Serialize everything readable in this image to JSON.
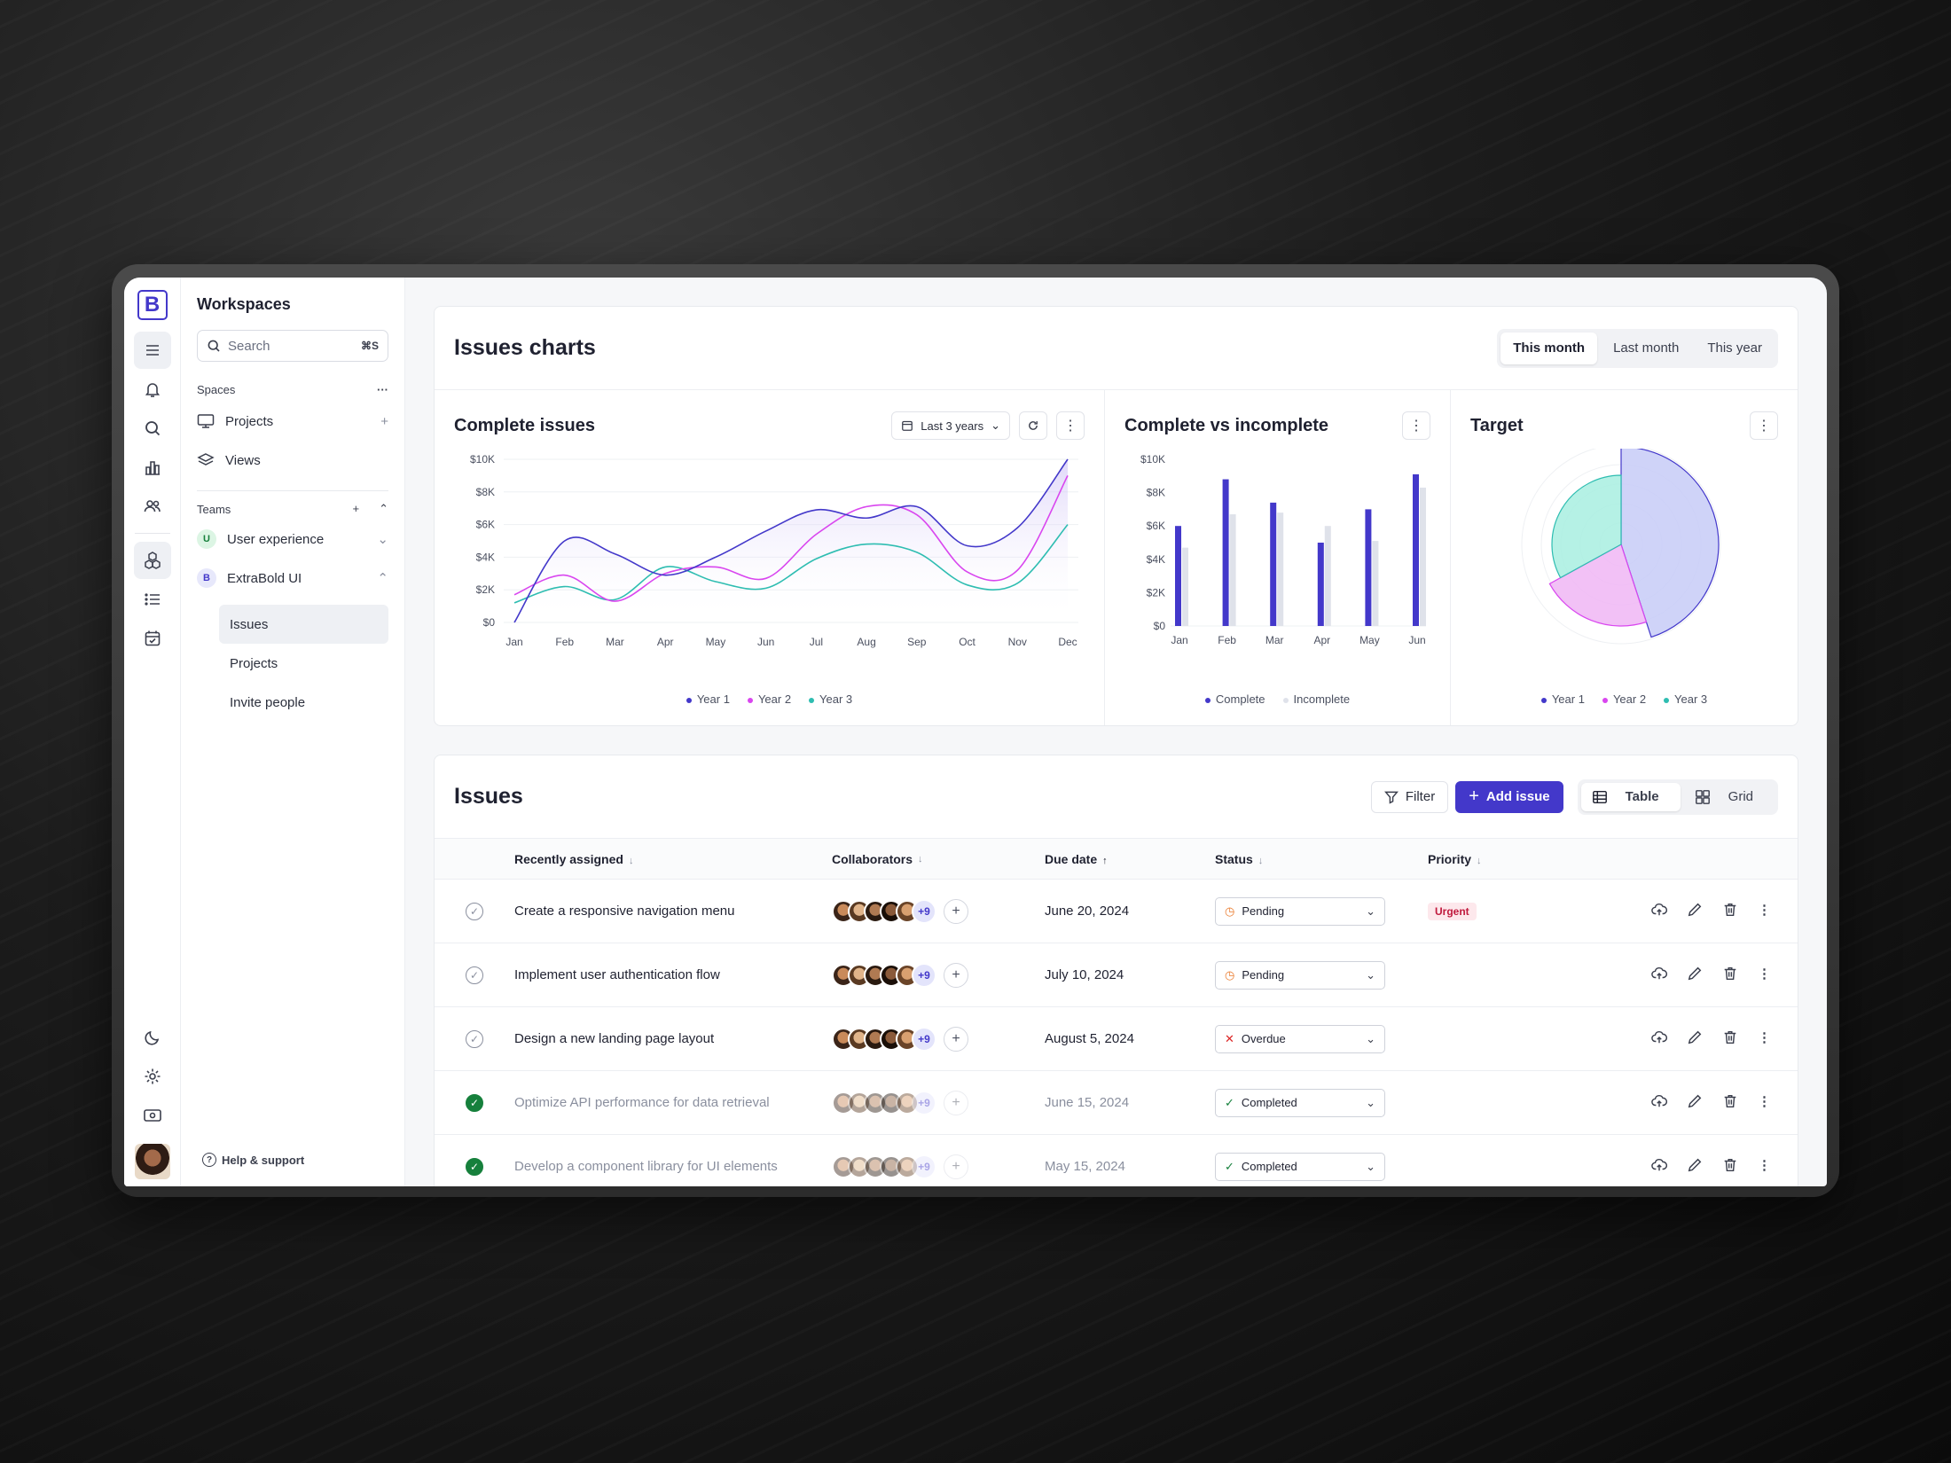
{
  "sidebar": {
    "workspace_title": "Workspaces",
    "search_placeholder": "Search",
    "search_shortcut": "⌘S",
    "spaces_label": "Spaces",
    "spaces": [
      {
        "label": "Projects"
      },
      {
        "label": "Views"
      }
    ],
    "teams_label": "Teams",
    "teams": [
      {
        "initial": "U",
        "label": "User experience"
      },
      {
        "initial": "B",
        "label": "ExtraBold UI"
      }
    ],
    "team_items": [
      {
        "label": "Issues"
      },
      {
        "label": "Projects"
      },
      {
        "label": "Invite people"
      }
    ],
    "help": "Help & support"
  },
  "charts_card": {
    "title": "Issues charts",
    "periods": [
      "This month",
      "Last month",
      "This year"
    ],
    "selected_period": "This month"
  },
  "chart_data": [
    {
      "type": "area",
      "title": "Complete issues",
      "range_label": "Last 3 years",
      "categories": [
        "Jan",
        "Feb",
        "Mar",
        "Apr",
        "May",
        "Jun",
        "Jul",
        "Aug",
        "Sep",
        "Oct",
        "Nov",
        "Dec"
      ],
      "y_ticks": [
        "$0",
        "$2K",
        "$4K",
        "$6K",
        "$8K",
        "$10K"
      ],
      "ylim": [
        0,
        10000
      ],
      "series": [
        {
          "name": "Year 1",
          "color": "#4338ca",
          "values": [
            0,
            5000,
            4200,
            2900,
            4000,
            5600,
            6900,
            6400,
            7100,
            4700,
            5800,
            10000
          ]
        },
        {
          "name": "Year 2",
          "color": "#d946ef",
          "values": [
            1700,
            2900,
            1300,
            3000,
            3400,
            2700,
            5400,
            7100,
            6600,
            3100,
            3200,
            9000
          ]
        },
        {
          "name": "Year 3",
          "color": "#2ebdb1",
          "values": [
            1200,
            2200,
            1400,
            3400,
            2500,
            2100,
            3900,
            4800,
            4300,
            2300,
            2400,
            6000
          ]
        }
      ],
      "grid": true,
      "legend": "bottom"
    },
    {
      "type": "bar",
      "title": "Complete vs incomplete",
      "categories": [
        "Jan",
        "Feb",
        "Mar",
        "Apr",
        "May",
        "Jun"
      ],
      "y_ticks": [
        "$0",
        "$2K",
        "$4K",
        "$6K",
        "$8K",
        "$10K"
      ],
      "ylim": [
        0,
        10000
      ],
      "series": [
        {
          "name": "Complete",
          "color": "#4338ca",
          "values": [
            6000,
            8800,
            7400,
            5000,
            7000,
            9100
          ]
        },
        {
          "name": "Incomplete",
          "color": "#dfe2ea",
          "values": [
            4700,
            6700,
            6800,
            6000,
            5100,
            8300
          ]
        }
      ],
      "legend": "bottom"
    },
    {
      "type": "pie",
      "title": "Target",
      "series": [
        {
          "name": "Year 1",
          "color": "#c7cbf7",
          "value": 45
        },
        {
          "name": "Year 2",
          "color": "#f0b6f5",
          "value": 22
        },
        {
          "name": "Year 3",
          "color": "#a8efe1",
          "value": 33
        }
      ],
      "legend": "bottom"
    }
  ],
  "issues": {
    "title": "Issues",
    "filter_label": "Filter",
    "add_label": "Add issue",
    "views": [
      "Table",
      "Grid"
    ],
    "selected_view": "Table",
    "columns": [
      "Recently assigned",
      "Collaborators",
      "Due date",
      "Status",
      "Priority"
    ],
    "more_count": "+9",
    "rows": [
      {
        "title": "Create a responsive navigation menu",
        "due": "June 20, 2024",
        "status": "Pending",
        "priority": "Urgent",
        "done": false
      },
      {
        "title": "Implement user authentication flow",
        "due": "July 10, 2024",
        "status": "Pending",
        "priority": "",
        "done": false
      },
      {
        "title": "Design a new landing page layout",
        "due": "August 5, 2024",
        "status": "Overdue",
        "priority": "",
        "done": false
      },
      {
        "title": "Optimize API performance for data retrieval",
        "due": "June  15, 2024",
        "status": "Completed",
        "priority": "",
        "done": true
      },
      {
        "title": "Develop a component library for UI elements",
        "due": "May 15, 2024",
        "status": "Completed",
        "priority": "",
        "done": true
      }
    ]
  },
  "colors": {
    "accent": "#4338ca",
    "urgent": "#c0193d",
    "completed": "#16803c",
    "pending": "#ea7a2c",
    "overdue": "#dc2626"
  },
  "icons": [
    "menu-icon",
    "bell-icon",
    "search-icon",
    "chart-icon",
    "users-icon",
    "cube-icon",
    "list-icon",
    "calendar-icon",
    "moon-icon",
    "gear-icon",
    "card-icon"
  ]
}
